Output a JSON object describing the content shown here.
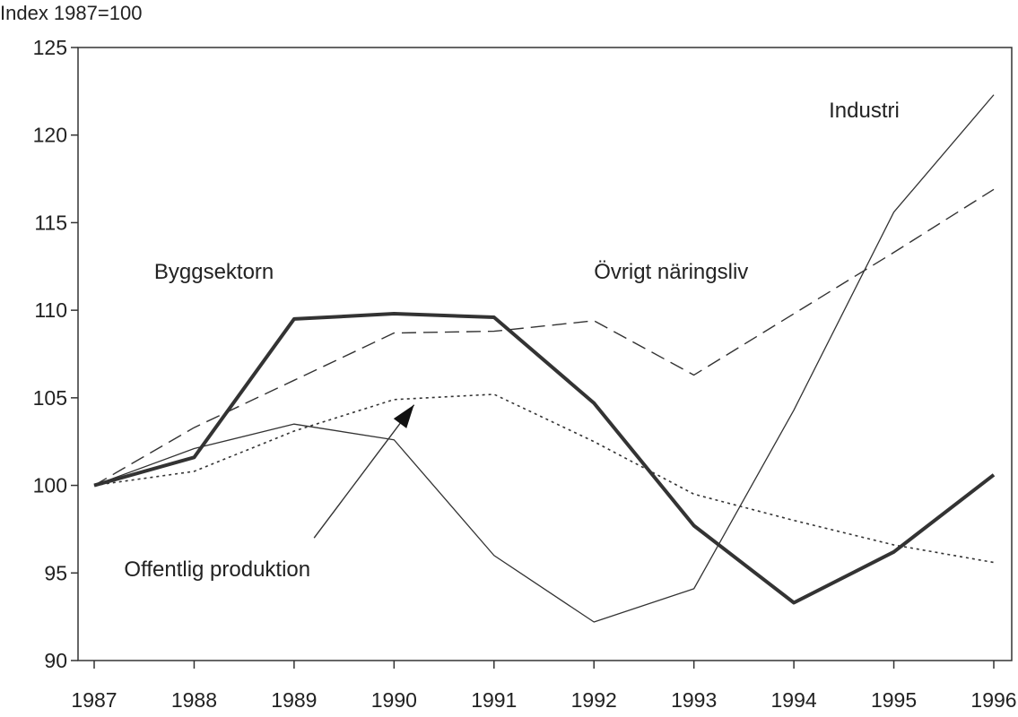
{
  "chart_data": {
    "type": "line",
    "title": "",
    "ylabel": "Index 1987=100",
    "xlabel": "",
    "x": [
      1987,
      1988,
      1989,
      1990,
      1991,
      1992,
      1993,
      1994,
      1995,
      1996
    ],
    "x_tick_labels": [
      "1987",
      "1988",
      "1989",
      "1990",
      "1991",
      "1992",
      "1993",
      "1994",
      "1995",
      "1996"
    ],
    "y_tick_labels": [
      "90",
      "95",
      "100",
      "105",
      "110",
      "115",
      "120",
      "125"
    ],
    "y_ticks": [
      90,
      95,
      100,
      105,
      110,
      115,
      120,
      125
    ],
    "ylim": [
      90,
      125
    ],
    "xlim": [
      1987,
      1996
    ],
    "grid": false,
    "legend": "inline labels",
    "series": [
      {
        "name": "Byggsektorn",
        "style": "thick-solid",
        "values": [
          100,
          101.6,
          109.5,
          109.8,
          109.6,
          104.7,
          97.7,
          93.3,
          96.2,
          100.6
        ]
      },
      {
        "name": "Industri",
        "style": "thin-solid",
        "values": [
          100,
          102.1,
          103.5,
          102.6,
          96.0,
          92.2,
          94.1,
          104.3,
          115.6,
          122.3
        ]
      },
      {
        "name": "Övrigt näringsliv",
        "style": "dashed",
        "values": [
          100,
          103.3,
          106.0,
          108.7,
          108.8,
          109.4,
          106.3,
          109.8,
          113.3,
          116.9
        ]
      },
      {
        "name": "Offentlig produktion",
        "style": "dotted",
        "values": [
          100,
          100.8,
          103.1,
          104.9,
          105.2,
          102.5,
          99.5,
          98.0,
          96.6,
          95.6
        ]
      }
    ],
    "colors": {
      "line": "#333333",
      "axis": "#333333"
    }
  }
}
